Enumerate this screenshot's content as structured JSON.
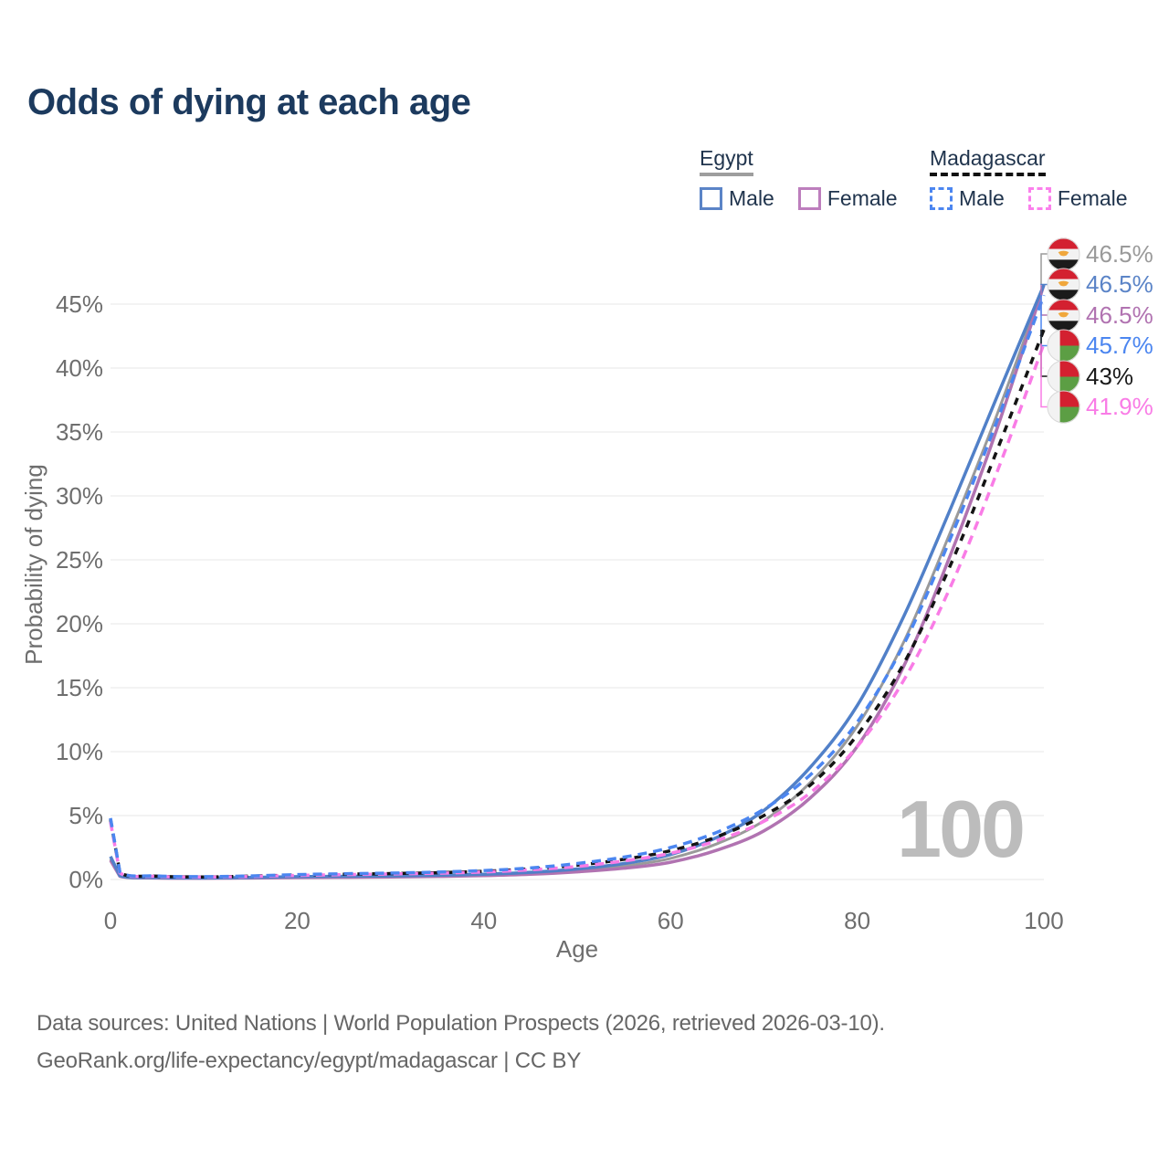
{
  "header": {
    "title": "Odds of dying at each age"
  },
  "legend": {
    "egypt": {
      "title": "Egypt",
      "male": "Male",
      "female": "Female"
    },
    "madagascar": {
      "title": "Madagascar",
      "male": "Male",
      "female": "Female"
    }
  },
  "axes": {
    "y_label": "Probability of dying",
    "x_label": "Age",
    "y_ticks": [
      "0%",
      "5%",
      "10%",
      "15%",
      "20%",
      "25%",
      "30%",
      "35%",
      "40%",
      "45%"
    ],
    "x_ticks": [
      "0",
      "20",
      "40",
      "60",
      "80",
      "100"
    ]
  },
  "watermark": "100",
  "footer": {
    "line1": "Data sources: United Nations | World Population Prospects (2026, retrieved 2026-03-10).",
    "line2": "GeoRank.org/life-expectancy/egypt/madagascar | CC BY"
  },
  "colors": {
    "title_navy": "#1c3a5e",
    "axis_gray": "#6e6e6e",
    "gridline": "#ececec",
    "egypt_underline": "#9e9e9e",
    "madagascar_underline": "#111111",
    "watermark_gray": "#bcbcbc"
  },
  "chart_data": {
    "type": "line",
    "title": "Odds of dying at each age",
    "xlabel": "Age",
    "ylabel": "Probability of dying",
    "x_range": [
      0,
      100
    ],
    "y_range_pct": [
      0,
      47
    ],
    "grid": "horizontal",
    "legend_position": "top-right",
    "x": [
      0,
      1,
      5,
      10,
      15,
      20,
      25,
      30,
      35,
      40,
      45,
      50,
      55,
      60,
      65,
      70,
      75,
      80,
      85,
      90,
      95,
      100
    ],
    "series": [
      {
        "name": "Egypt Both",
        "country": "egypt",
        "style": "solid",
        "color": "#9a9a9a",
        "values_pct": [
          1.6,
          0.27,
          0.13,
          0.11,
          0.14,
          0.18,
          0.21,
          0.24,
          0.28,
          0.35,
          0.48,
          0.7,
          1.05,
          1.65,
          2.8,
          4.6,
          7.6,
          12.0,
          18.6,
          27.2,
          36.4,
          46.5
        ]
      },
      {
        "name": "Egypt Male",
        "country": "egypt",
        "style": "solid",
        "color": "#5180c8",
        "values_pct": [
          1.8,
          0.3,
          0.15,
          0.12,
          0.16,
          0.22,
          0.25,
          0.28,
          0.33,
          0.41,
          0.56,
          0.82,
          1.25,
          1.95,
          3.3,
          5.4,
          8.8,
          13.6,
          20.6,
          29.0,
          37.8,
          46.5
        ]
      },
      {
        "name": "Egypt Female",
        "country": "egypt",
        "style": "solid",
        "color": "#b173b1",
        "values_pct": [
          1.5,
          0.25,
          0.12,
          0.1,
          0.12,
          0.15,
          0.17,
          0.2,
          0.24,
          0.3,
          0.41,
          0.6,
          0.88,
          1.35,
          2.3,
          3.8,
          6.4,
          10.4,
          16.7,
          25.4,
          35.3,
          46.5
        ]
      },
      {
        "name": "Madagascar Male",
        "country": "madagascar",
        "style": "dashed",
        "color": "#4c86f0",
        "values_pct": [
          4.8,
          0.6,
          0.28,
          0.22,
          0.28,
          0.38,
          0.45,
          0.5,
          0.58,
          0.7,
          0.9,
          1.25,
          1.75,
          2.5,
          3.7,
          5.5,
          8.2,
          12.3,
          18.4,
          26.7,
          35.9,
          45.7
        ]
      },
      {
        "name": "Madagascar Both",
        "country": "madagascar",
        "style": "dashed",
        "color": "#141414",
        "values_pct": [
          4.7,
          0.55,
          0.26,
          0.2,
          0.26,
          0.35,
          0.41,
          0.46,
          0.53,
          0.64,
          0.83,
          1.12,
          1.58,
          2.25,
          3.35,
          5.0,
          7.4,
          11.3,
          16.9,
          24.6,
          33.6,
          43.0
        ]
      },
      {
        "name": "Madagascar Female",
        "country": "madagascar",
        "style": "dashed",
        "color": "#f97ce6",
        "values_pct": [
          4.5,
          0.52,
          0.24,
          0.19,
          0.24,
          0.32,
          0.38,
          0.43,
          0.49,
          0.59,
          0.76,
          1.02,
          1.45,
          2.05,
          3.05,
          4.55,
          6.8,
          10.4,
          15.6,
          22.9,
          31.9,
          41.9
        ]
      }
    ],
    "value_labels": [
      {
        "flag": "egypt",
        "text": "46.5%",
        "color": "#9a9a9a",
        "series": "Egypt Both"
      },
      {
        "flag": "egypt",
        "text": "46.5%",
        "color": "#5b84c7",
        "series": "Egypt Male"
      },
      {
        "flag": "egypt",
        "text": "46.5%",
        "color": "#b173b1",
        "series": "Egypt Female"
      },
      {
        "flag": "madagascar",
        "text": "45.7%",
        "color": "#4c86f0",
        "series": "Madagascar Male"
      },
      {
        "flag": "madagascar",
        "text": "43%",
        "color": "#1a1a1a",
        "series": "Madagascar Both"
      },
      {
        "flag": "madagascar",
        "text": "41.9%",
        "color": "#f97ce6",
        "series": "Madagascar Female"
      }
    ]
  }
}
